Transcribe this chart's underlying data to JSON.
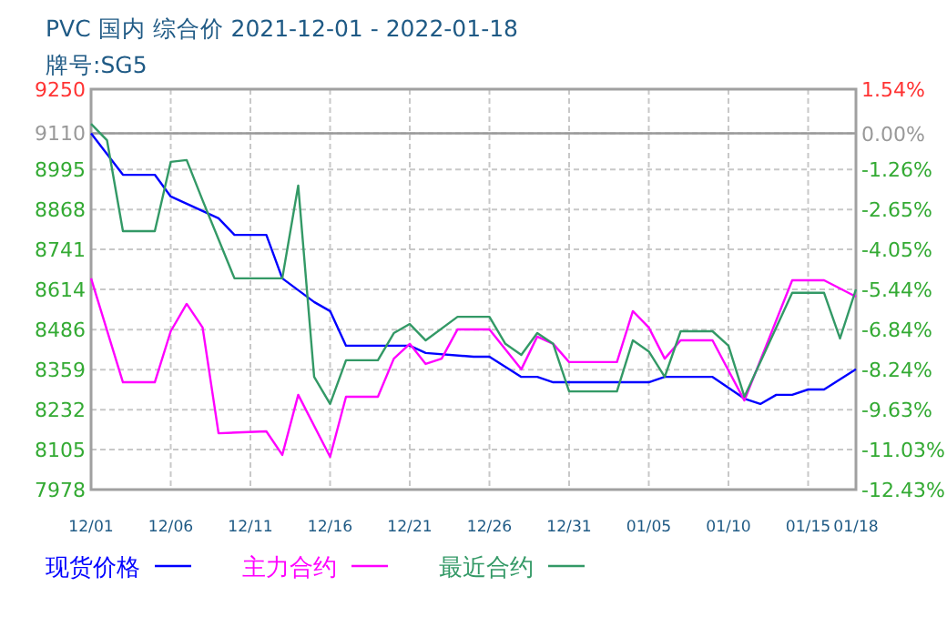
{
  "chart_data": {
    "type": "line",
    "title": "PVC 国内 综合价 2021-12-01 - 2022-01-18",
    "subtitle": "牌号:SG5",
    "xlim": [
      "2021-12-01",
      "2022-01-18"
    ],
    "xticks": [
      {
        "value": "2021-12-01",
        "label": "12/01"
      },
      {
        "value": "2021-12-06",
        "label": "12/06"
      },
      {
        "value": "2021-12-11",
        "label": "12/11"
      },
      {
        "value": "2021-12-16",
        "label": "12/16"
      },
      {
        "value": "2021-12-21",
        "label": "12/21"
      },
      {
        "value": "2021-12-26",
        "label": "12/26"
      },
      {
        "value": "2021-12-31",
        "label": "12/31"
      },
      {
        "value": "2022-01-05",
        "label": "01/05"
      },
      {
        "value": "2022-01-10",
        "label": "01/10"
      },
      {
        "value": "2022-01-15",
        "label": "01/15"
      },
      {
        "value": "2022-01-18",
        "label": "01/18"
      }
    ],
    "ylim": [
      7978,
      9250
    ],
    "yticks": [
      9250,
      9110,
      8995,
      8868,
      8741,
      8614,
      8486,
      8359,
      8232,
      8105,
      7978
    ],
    "y2lim": [
      -12.43,
      1.54
    ],
    "y2ticks": [
      {
        "value": 1.54,
        "label": "1.54%"
      },
      {
        "value": 0,
        "label": "0.00%"
      },
      {
        "value": -1.26,
        "label": "-1.26%"
      },
      {
        "value": -2.65,
        "label": "-2.65%"
      },
      {
        "value": -4.05,
        "label": "-4.05%"
      },
      {
        "value": -5.44,
        "label": "-5.44%"
      },
      {
        "value": -6.84,
        "label": "-6.84%"
      },
      {
        "value": -8.24,
        "label": "-8.24%"
      },
      {
        "value": -9.63,
        "label": "-9.63%"
      },
      {
        "value": -11.03,
        "label": "-11.03%"
      },
      {
        "value": -12.43,
        "label": "-12.43%"
      }
    ],
    "ref_lines": [
      {
        "axis": "y2",
        "value": 0,
        "color": "#999999"
      }
    ],
    "grid": true,
    "legend": "bottom",
    "marker": "none",
    "line_style": "solid",
    "series": [
      {
        "name": "现货价格",
        "color": "#0000ff",
        "x": [
          "2021-12-01",
          "2021-12-03",
          "2021-12-05",
          "2021-12-06",
          "2021-12-08",
          "2021-12-09",
          "2021-12-10",
          "2021-12-12",
          "2021-12-13",
          "2021-12-15",
          "2021-12-16",
          "2021-12-17",
          "2021-12-21",
          "2021-12-22",
          "2021-12-25",
          "2021-12-26",
          "2021-12-28",
          "2021-12-29",
          "2021-12-30",
          "2022-01-05",
          "2022-01-06",
          "2022-01-09",
          "2022-01-11",
          "2022-01-12",
          "2022-01-13",
          "2022-01-14",
          "2022-01-15",
          "2022-01-16",
          "2022-01-18"
        ],
        "values": [
          9110,
          8978,
          8978,
          8909,
          8863,
          8840,
          8787,
          8787,
          8649,
          8574,
          8545,
          8435,
          8435,
          8412,
          8400,
          8400,
          8336,
          8336,
          8319,
          8319,
          8336,
          8336,
          8267,
          8250,
          8279,
          8279,
          8296,
          8296,
          8360
        ]
      },
      {
        "name": "主力合约",
        "color": "#ff00ff",
        "x": [
          "2021-12-01",
          "2021-12-03",
          "2021-12-05",
          "2021-12-06",
          "2021-12-07",
          "2021-12-08",
          "2021-12-09",
          "2021-12-12",
          "2021-12-13",
          "2021-12-14",
          "2021-12-16",
          "2021-12-17",
          "2021-12-19",
          "2021-12-20",
          "2021-12-21",
          "2021-12-22",
          "2021-12-23",
          "2021-12-24",
          "2021-12-25",
          "2021-12-26",
          "2021-12-28",
          "2021-12-29",
          "2021-12-30",
          "2021-12-31",
          "2022-01-03",
          "2022-01-04",
          "2022-01-05",
          "2022-01-06",
          "2022-01-07",
          "2022-01-09",
          "2022-01-11",
          "2022-01-14",
          "2022-01-16",
          "2022-01-18"
        ],
        "values": [
          8649,
          8319,
          8319,
          8481,
          8568,
          8493,
          8157,
          8163,
          8088,
          8279,
          8082,
          8273,
          8273,
          8394,
          8441,
          8377,
          8394,
          8487,
          8487,
          8487,
          8360,
          8464,
          8441,
          8383,
          8383,
          8545,
          8493,
          8394,
          8452,
          8452,
          8261,
          8643,
          8643,
          8591
        ]
      },
      {
        "name": "最近合约",
        "color": "#339966",
        "x": [
          "2021-12-01",
          "2021-12-02",
          "2021-12-03",
          "2021-12-05",
          "2021-12-06",
          "2021-12-07",
          "2021-12-08",
          "2021-12-10",
          "2021-12-13",
          "2021-12-14",
          "2021-12-15",
          "2021-12-16",
          "2021-12-17",
          "2021-12-19",
          "2021-12-20",
          "2021-12-21",
          "2021-12-22",
          "2021-12-24",
          "2021-12-25",
          "2021-12-26",
          "2021-12-27",
          "2021-12-28",
          "2021-12-29",
          "2021-12-30",
          "2021-12-31",
          "2022-01-03",
          "2022-01-04",
          "2022-01-05",
          "2022-01-06",
          "2022-01-07",
          "2022-01-09",
          "2022-01-10",
          "2022-01-11",
          "2022-01-14",
          "2022-01-16",
          "2022-01-17",
          "2022-01-18"
        ],
        "values": [
          9140,
          9088,
          8799,
          8799,
          9019,
          9025,
          8897,
          8649,
          8649,
          8944,
          8336,
          8250,
          8389,
          8389,
          8475,
          8504,
          8452,
          8527,
          8527,
          8527,
          8441,
          8406,
          8475,
          8441,
          8290,
          8290,
          8452,
          8417,
          8336,
          8481,
          8481,
          8435,
          8273,
          8603,
          8603,
          8458,
          8614
        ]
      }
    ]
  }
}
